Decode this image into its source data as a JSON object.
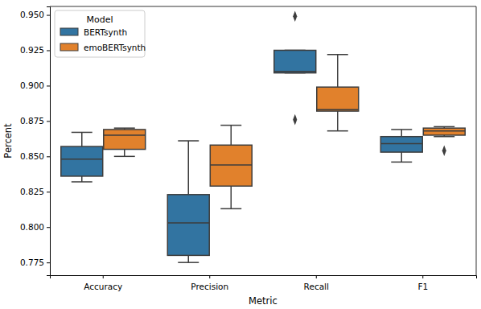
{
  "chart_data": {
    "type": "box",
    "x_label": "Metric",
    "y_label": "Percent",
    "categories": [
      "Accuracy",
      "Precision",
      "Recall",
      "F1"
    ],
    "legend": "upper left",
    "legend_title": "Model",
    "ylim": [
      0.766,
      0.956
    ],
    "yticks": [
      0.775,
      {
        "value": 0.8,
        "label": "0.800"
      },
      0.825,
      {
        "value": 0.85,
        "label": "0.850"
      },
      0.875,
      {
        "value": 0.9,
        "label": "0.900"
      },
      0.925,
      {
        "value": 0.95,
        "label": "0.950"
      }
    ],
    "series": [
      {
        "name": "BERTsynth",
        "color": "#3274a1",
        "boxes": [
          {
            "min": 0.832,
            "q1": 0.836,
            "median": 0.848,
            "q3": 0.857,
            "max": 0.867,
            "outliers": []
          },
          {
            "min": 0.775,
            "q1": 0.78,
            "median": 0.803,
            "q3": 0.823,
            "max": 0.861,
            "outliers": []
          },
          {
            "min": 0.909,
            "q1": 0.909,
            "median": 0.91,
            "q3": 0.925,
            "max": 0.925,
            "outliers": [
              0.949,
              0.876
            ]
          },
          {
            "min": 0.846,
            "q1": 0.853,
            "median": 0.859,
            "q3": 0.864,
            "max": 0.869,
            "outliers": []
          }
        ]
      },
      {
        "name": "emoBERTsynth",
        "color": "#e1812c",
        "boxes": [
          {
            "min": 0.85,
            "q1": 0.855,
            "median": 0.865,
            "q3": 0.869,
            "max": 0.87,
            "outliers": []
          },
          {
            "min": 0.813,
            "q1": 0.829,
            "median": 0.844,
            "q3": 0.858,
            "max": 0.872,
            "outliers": []
          },
          {
            "min": 0.868,
            "q1": 0.882,
            "median": 0.883,
            "q3": 0.899,
            "max": 0.922,
            "outliers": []
          },
          {
            "min": 0.864,
            "q1": 0.865,
            "median": 0.868,
            "q3": 0.87,
            "max": 0.871,
            "outliers": [
              0.854
            ]
          }
        ]
      }
    ]
  }
}
